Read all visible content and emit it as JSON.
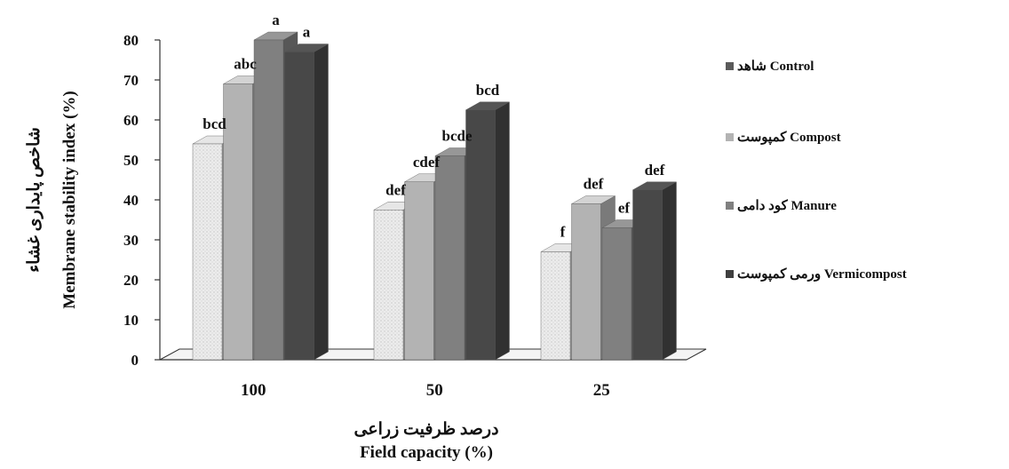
{
  "chart_data": {
    "type": "bar",
    "categories": [
      "100",
      "50",
      "25"
    ],
    "series": [
      {
        "name": "شاهد Control",
        "values": [
          54,
          37.5,
          27
        ],
        "labels": [
          "bcd",
          "def",
          "f"
        ],
        "color": "#e6e6e6"
      },
      {
        "name": "کمپوست Compost",
        "values": [
          69,
          44.5,
          39
        ],
        "labels": [
          "abc",
          "cdef",
          "def"
        ],
        "color": "#b3b3b3"
      },
      {
        "name": "کود دامی Manure",
        "values": [
          80,
          51,
          33
        ],
        "labels": [
          "a",
          "bcde",
          "ef"
        ],
        "color": "#808080"
      },
      {
        "name": "ورمی کمپوست Vermicompost",
        "values": [
          77,
          62.5,
          42.5
        ],
        "labels": [
          "a",
          "bcd",
          "def"
        ],
        "color": "#484848"
      }
    ],
    "ylabel": "Membrane stability index (%)",
    "ylabel_fa": "شاخص پایداری غشاء",
    "xlabel": "Field capacity (%)",
    "xlabel_fa": "درصد ظرفیت زراعی",
    "ylim": [
      0,
      80
    ],
    "yticks": [
      0,
      10,
      20,
      30,
      40,
      50,
      60,
      70,
      80
    ],
    "legend_position": "right",
    "grid": false
  }
}
